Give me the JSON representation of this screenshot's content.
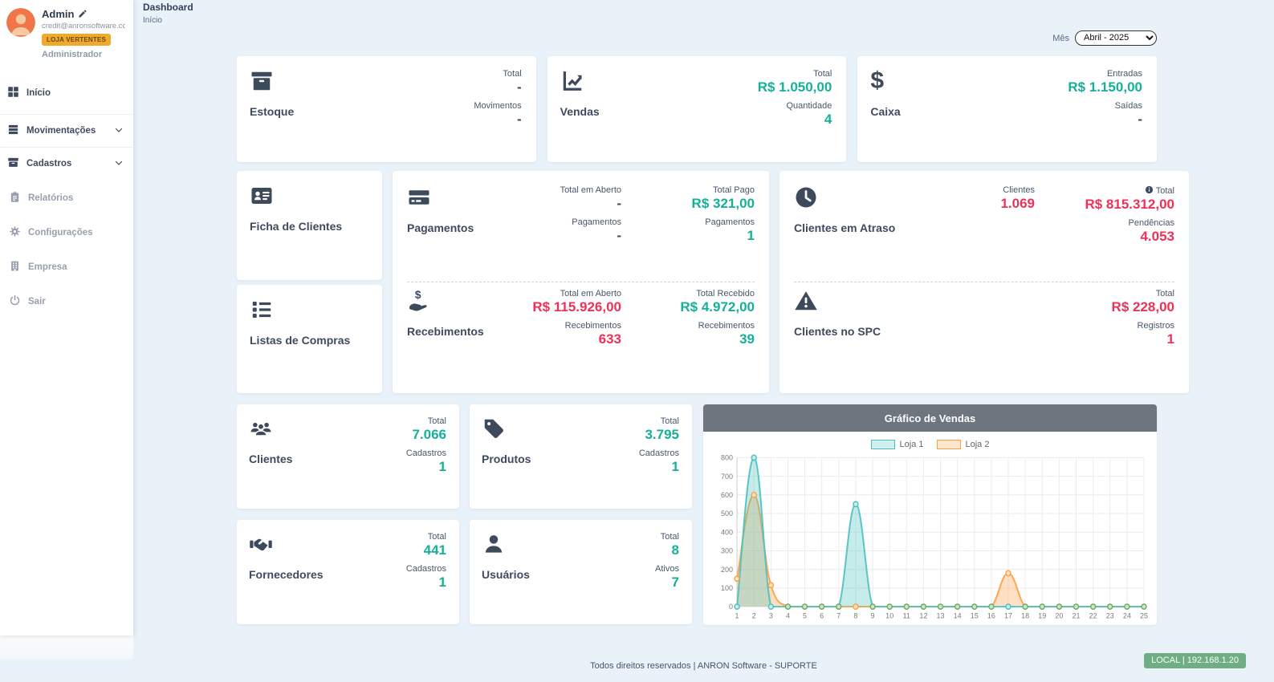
{
  "colors": {
    "green": "#15b097",
    "red": "#ee3158",
    "dark_text": "#3e4b5e",
    "store_badge_bg": "#f0a92c",
    "chart_header_bg": "#6d757e",
    "local_badge_bg": "#6fae84"
  },
  "sidebar": {
    "user": {
      "name": "Admin",
      "email": "credit@anronsoftware.co...",
      "store_badge": "LOJA VERTENTES",
      "role": "Administrador"
    },
    "items": [
      {
        "label": "Início"
      },
      {
        "label": "Movimentações"
      },
      {
        "label": "Cadastros"
      },
      {
        "label": "Relatórios"
      },
      {
        "label": "Configurações"
      },
      {
        "label": "Empresa"
      },
      {
        "label": "Sair"
      }
    ]
  },
  "header": {
    "title": "Dashboard",
    "breadcrumb": "Início",
    "month_label": "Mês",
    "month_value": "Abril - 2025"
  },
  "cards": {
    "estoque": {
      "title": "Estoque",
      "stats": [
        {
          "label": "Total",
          "value": "-"
        },
        {
          "label": "Movimentos",
          "value": "-"
        }
      ]
    },
    "vendas": {
      "title": "Vendas",
      "stats": [
        {
          "label": "Total",
          "value": "R$ 1.050,00"
        },
        {
          "label": "Quantidade",
          "value": "4"
        }
      ]
    },
    "caixa": {
      "title": "Caixa",
      "stats": [
        {
          "label": "Entradas",
          "value": "R$ 1.150,00"
        },
        {
          "label": "Saídas",
          "value": "-"
        }
      ]
    },
    "ficha": {
      "title": "Ficha de Clientes"
    },
    "listas": {
      "title": "Listas de Compras"
    },
    "pagamentos": {
      "title": "Pagamentos",
      "open_label": "Total em Aberto",
      "open_value": "-",
      "open_count_label": "Pagamentos",
      "open_count_value": "-",
      "paid_label": "Total Pago",
      "paid_value": "R$ 321,00",
      "paid_count_label": "Pagamentos",
      "paid_count_value": "1"
    },
    "recebimentos": {
      "title": "Recebimentos",
      "open_label": "Total em Aberto",
      "open_value": "R$ 115.926,00",
      "open_count_label": "Recebimentos",
      "open_count_value": "633",
      "received_label": "Total Recebido",
      "received_value": "R$ 4.972,00",
      "received_count_label": "Recebimentos",
      "received_count_value": "39"
    },
    "atraso": {
      "title": "Clientes em Atraso",
      "clients_label": "Clientes",
      "clients_value": "1.069",
      "total_label": "Total",
      "total_value": "R$ 815.312,00",
      "pend_label": "Pendências",
      "pend_value": "4.053"
    },
    "spc": {
      "title": "Clientes no SPC",
      "total_label": "Total",
      "total_value": "R$ 228,00",
      "reg_label": "Registros",
      "reg_value": "1"
    },
    "clientes": {
      "title": "Clientes",
      "stats": [
        {
          "label": "Total",
          "value": "7.066"
        },
        {
          "label": "Cadastros",
          "value": "1"
        }
      ]
    },
    "produtos": {
      "title": "Produtos",
      "stats": [
        {
          "label": "Total",
          "value": "3.795"
        },
        {
          "label": "Cadastros",
          "value": "1"
        }
      ]
    },
    "fornecedores": {
      "title": "Fornecedores",
      "stats": [
        {
          "label": "Total",
          "value": "441"
        },
        {
          "label": "Cadastros",
          "value": "1"
        }
      ]
    },
    "usuarios": {
      "title": "Usuários",
      "stats": [
        {
          "label": "Total",
          "value": "8"
        },
        {
          "label": "Ativos",
          "value": "7"
        }
      ]
    }
  },
  "chart_data": {
    "type": "line",
    "title": "Gráfico de Vendas",
    "x": [
      1,
      2,
      3,
      4,
      5,
      6,
      7,
      8,
      9,
      10,
      11,
      12,
      13,
      14,
      15,
      16,
      17,
      18,
      19,
      20,
      21,
      22,
      23,
      24,
      25
    ],
    "series": [
      {
        "name": "Loja 1",
        "color": "#4bc0c0",
        "fill": "#cdeaec",
        "values": [
          0,
          800,
          0,
          0,
          0,
          0,
          0,
          550,
          0,
          0,
          0,
          0,
          0,
          0,
          0,
          0,
          0,
          0,
          0,
          0,
          0,
          0,
          0,
          0,
          0
        ]
      },
      {
        "name": "Loja 2",
        "color": "#ff9f40",
        "fill": "#ffe6cc",
        "values": [
          150,
          600,
          115,
          0,
          0,
          0,
          0,
          0,
          0,
          0,
          0,
          0,
          0,
          0,
          0,
          0,
          180,
          0,
          0,
          0,
          0,
          0,
          0,
          0,
          0
        ]
      }
    ],
    "ylim": [
      0,
      800
    ],
    "ytick": 100,
    "grid": true,
    "legend_position": "top",
    "zero_color": "#69aa64",
    "zero_fill": "#cde4c6"
  },
  "footer": {
    "text": "Todos direitos reservados | ANRON Software - SUPORTE",
    "local_badge": "LOCAL | 192.168.1.20"
  }
}
